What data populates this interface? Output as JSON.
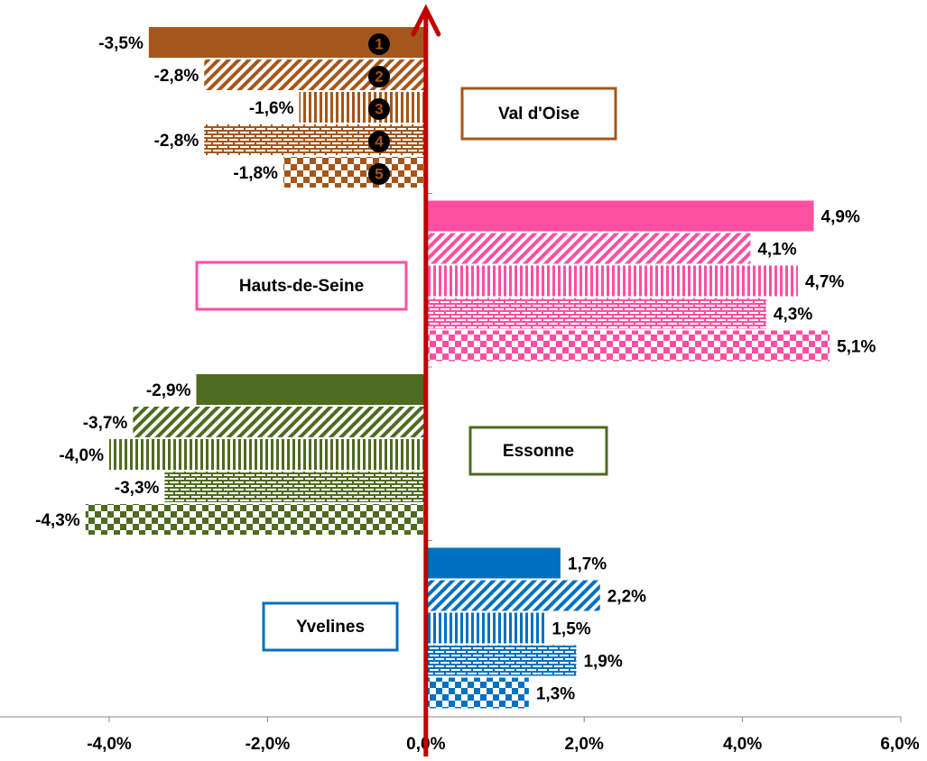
{
  "chart_data": {
    "type": "bar",
    "orientation": "horizontal",
    "categories": [
      "Val d'Oise",
      "Hauts-de-Seine",
      "Essonne",
      "Yvelines"
    ],
    "colors": [
      "#a5561a",
      "#ff4fa3",
      "#4e6b1f",
      "#0070c0"
    ],
    "series": [
      {
        "name": "1",
        "pattern": "solid",
        "values": [
          -3.5,
          4.9,
          -2.9,
          1.7
        ],
        "value_labels": [
          "-3,5%",
          "4,9%",
          "-2,9%",
          "1,7%"
        ]
      },
      {
        "name": "2",
        "pattern": "diagonal",
        "values": [
          -2.8,
          4.1,
          -3.7,
          2.2
        ],
        "value_labels": [
          "-2,8%",
          "4,1%",
          "-3,7%",
          "2,2%"
        ]
      },
      {
        "name": "3",
        "pattern": "vertical",
        "values": [
          -1.6,
          4.7,
          -4.0,
          1.5
        ],
        "value_labels": [
          "-1,6%",
          "4,7%",
          "-4,0%",
          "1,5%"
        ]
      },
      {
        "name": "4",
        "pattern": "brick",
        "values": [
          -2.8,
          4.3,
          -3.3,
          1.9
        ],
        "value_labels": [
          "-2,8%",
          "4,3%",
          "-3,3%",
          "1,9%"
        ]
      },
      {
        "name": "5",
        "pattern": "checker",
        "values": [
          -1.8,
          5.1,
          -4.3,
          1.3
        ],
        "value_labels": [
          "-1,8%",
          "5,1%",
          "-4,3%",
          "1,3%"
        ]
      }
    ],
    "xlim": [
      -5.38,
      6
    ],
    "xticks": [
      {
        "value": -4,
        "label": "-4,0%"
      },
      {
        "value": -2,
        "label": "-2,0%"
      },
      {
        "value": 0,
        "label": "0,0%"
      },
      {
        "value": 2,
        "label": "2,0%"
      },
      {
        "value": 4,
        "label": "4,0%"
      },
      {
        "value": 6,
        "label": "6,0%"
      }
    ]
  }
}
